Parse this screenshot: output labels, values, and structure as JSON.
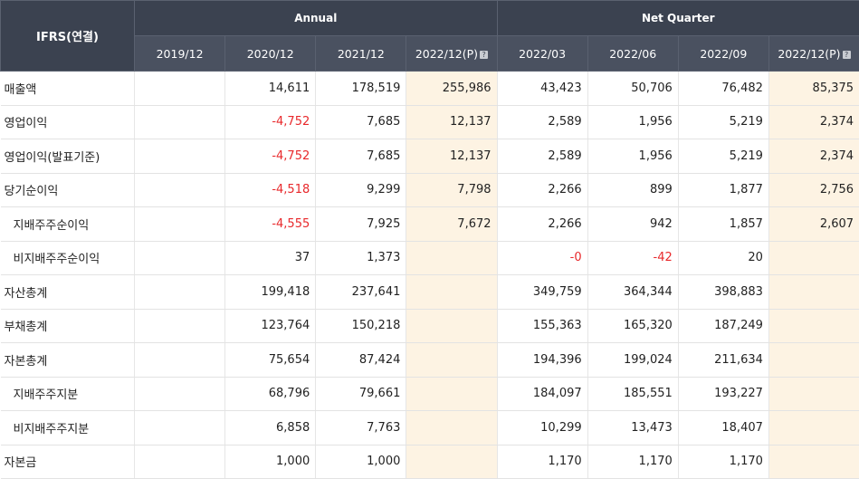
{
  "header": {
    "corner": "IFRS(연결)",
    "group_annual": "Annual",
    "group_quarter": "Net Quarter",
    "periods": [
      {
        "label": "2019/12",
        "badge": false
      },
      {
        "label": "2020/12",
        "badge": false
      },
      {
        "label": "2021/12",
        "badge": false
      },
      {
        "label": "2022/12(P)",
        "badge": true
      },
      {
        "label": "2022/03",
        "badge": false
      },
      {
        "label": "2022/06",
        "badge": false
      },
      {
        "label": "2022/09",
        "badge": false
      },
      {
        "label": "2022/12(P)",
        "badge": true
      }
    ],
    "badge_icon": "info-icon"
  },
  "colors": {
    "header_bg": "#3b4250",
    "estimate_bg": "#fdf3e3",
    "negative_text": "#e8282b"
  },
  "estimate_columns": [
    3,
    7
  ],
  "rows": [
    {
      "label": "매출액",
      "indent": false,
      "values": [
        "",
        "14,611",
        "178,519",
        "255,986",
        "43,423",
        "50,706",
        "76,482",
        "85,375"
      ]
    },
    {
      "label": "영업이익",
      "indent": false,
      "values": [
        "",
        "-4,752",
        "7,685",
        "12,137",
        "2,589",
        "1,956",
        "5,219",
        "2,374"
      ]
    },
    {
      "label": "영업이익(발표기준)",
      "indent": false,
      "values": [
        "",
        "-4,752",
        "7,685",
        "12,137",
        "2,589",
        "1,956",
        "5,219",
        "2,374"
      ]
    },
    {
      "label": "당기순이익",
      "indent": false,
      "values": [
        "",
        "-4,518",
        "9,299",
        "7,798",
        "2,266",
        "899",
        "1,877",
        "2,756"
      ]
    },
    {
      "label": "지배주주순이익",
      "indent": true,
      "values": [
        "",
        "-4,555",
        "7,925",
        "7,672",
        "2,266",
        "942",
        "1,857",
        "2,607"
      ]
    },
    {
      "label": "비지배주주순이익",
      "indent": true,
      "values": [
        "",
        "37",
        "1,373",
        "",
        "-0",
        "-42",
        "20",
        ""
      ]
    },
    {
      "label": "자산총계",
      "indent": false,
      "values": [
        "",
        "199,418",
        "237,641",
        "",
        "349,759",
        "364,344",
        "398,883",
        ""
      ]
    },
    {
      "label": "부채총계",
      "indent": false,
      "values": [
        "",
        "123,764",
        "150,218",
        "",
        "155,363",
        "165,320",
        "187,249",
        ""
      ]
    },
    {
      "label": "자본총계",
      "indent": false,
      "values": [
        "",
        "75,654",
        "87,424",
        "",
        "194,396",
        "199,024",
        "211,634",
        ""
      ]
    },
    {
      "label": "지배주주지분",
      "indent": true,
      "values": [
        "",
        "68,796",
        "79,661",
        "",
        "184,097",
        "185,551",
        "193,227",
        ""
      ]
    },
    {
      "label": "비지배주주지분",
      "indent": true,
      "values": [
        "",
        "6,858",
        "7,763",
        "",
        "10,299",
        "13,473",
        "18,407",
        ""
      ]
    },
    {
      "label": "자본금",
      "indent": false,
      "values": [
        "",
        "1,000",
        "1,000",
        "",
        "1,170",
        "1,170",
        "1,170",
        ""
      ]
    }
  ]
}
